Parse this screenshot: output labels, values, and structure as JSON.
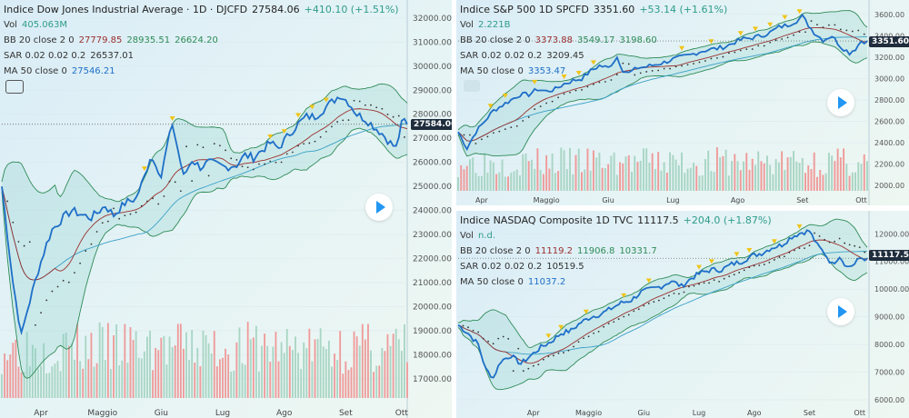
{
  "colors": {
    "price": "#1e6fc8",
    "ma": "#9b2f2f",
    "bb": "#2e8b57",
    "sar": "#333333",
    "up": "#a8d5c4",
    "down": "#ef9a9a",
    "marker_up": "#f0c419",
    "marker_down": "#e54848",
    "text_up": "#2e9c8a",
    "text_down": "#c0392b"
  },
  "chart_data": [
    {
      "type": "line",
      "id": "dj",
      "title": "Indice Dow Jones Industrial Average · 1D · DJCFD",
      "last": "27584.06",
      "change": "+410.10 (+1.51%)",
      "indicators": [
        {
          "label": "Vol",
          "values": [
            "405.063M"
          ]
        },
        {
          "label": "BB 20 close 2 0",
          "values": [
            "27779.85",
            "28935.51",
            "26624.20"
          ]
        },
        {
          "label": "SAR 0.02 0.02 0.2",
          "values": [
            "26537.01"
          ]
        },
        {
          "label": "MA 50 close 0",
          "values": [
            "27546.21"
          ]
        }
      ],
      "ylim": [
        16200,
        32600
      ],
      "yticks": [
        17000,
        18000,
        19000,
        20000,
        21000,
        22000,
        23000,
        24000,
        25000,
        26000,
        27000,
        28000,
        29000,
        30000,
        31000,
        32000
      ],
      "price_label": "27584.06",
      "x_ticks": [
        {
          "label": "Apr",
          "i": 14
        },
        {
          "label": "Maggio",
          "i": 36
        },
        {
          "label": "Giu",
          "i": 57
        },
        {
          "label": "Lug",
          "i": 79
        },
        {
          "label": "Ago",
          "i": 101
        },
        {
          "label": "Set",
          "i": 123
        },
        {
          "label": "Ott",
          "i": 143
        }
      ],
      "n": 146,
      "anchors": [
        [
          0,
          25000
        ],
        [
          4,
          21000
        ],
        [
          7,
          18800
        ],
        [
          9,
          19800
        ],
        [
          13,
          21500
        ],
        [
          16,
          22600
        ],
        [
          18,
          23200
        ],
        [
          22,
          23700
        ],
        [
          25,
          24000
        ],
        [
          29,
          23800
        ],
        [
          32,
          23700
        ],
        [
          37,
          24200
        ],
        [
          40,
          23800
        ],
        [
          44,
          24300
        ],
        [
          48,
          24500
        ],
        [
          51,
          25400
        ],
        [
          53,
          26200
        ],
        [
          55,
          26000
        ],
        [
          57,
          25400
        ],
        [
          59,
          26600
        ],
        [
          61,
          27600
        ],
        [
          63,
          26500
        ],
        [
          65,
          25400
        ],
        [
          68,
          26100
        ],
        [
          71,
          25800
        ],
        [
          74,
          26000
        ],
        [
          77,
          25900
        ],
        [
          80,
          25800
        ],
        [
          84,
          25900
        ],
        [
          87,
          26300
        ],
        [
          90,
          26200
        ],
        [
          93,
          26500
        ],
        [
          96,
          26800
        ],
        [
          99,
          26600
        ],
        [
          103,
          27200
        ],
        [
          106,
          27600
        ],
        [
          109,
          27900
        ],
        [
          112,
          27900
        ],
        [
          115,
          28200
        ],
        [
          118,
          28500
        ],
        [
          121,
          28800
        ],
        [
          124,
          28500
        ],
        [
          127,
          28000
        ],
        [
          130,
          27800
        ],
        [
          133,
          27500
        ],
        [
          136,
          27200
        ],
        [
          139,
          26800
        ],
        [
          141,
          26600
        ],
        [
          143,
          27584
        ]
      ]
    },
    {
      "type": "line",
      "id": "sp",
      "title": "Indice S&P 500   1D   SPCFD",
      "last": "3351.60",
      "change": "+53.14 (+1.61%)",
      "indicators": [
        {
          "label": "Vol",
          "values": [
            "2.221B"
          ]
        },
        {
          "label": "BB 20 close 2 0",
          "values": [
            "3373.88",
            "3549.17",
            "3198.60"
          ]
        },
        {
          "label": "SAR 0.02 0.02 0.2",
          "values": [
            "3209.45"
          ]
        },
        {
          "label": "MA 50 close 0",
          "values": [
            "3353.47"
          ]
        }
      ],
      "ylim": [
        1950,
        3700
      ],
      "yticks": [
        2000,
        2200,
        2400,
        2600,
        2800,
        3000,
        3200,
        3400,
        3600
      ],
      "price_label": "3351.60",
      "x_ticks": [
        {
          "label": "Apr",
          "i": 8
        },
        {
          "label": "Maggio",
          "i": 30
        },
        {
          "label": "Giu",
          "i": 51
        },
        {
          "label": "Lug",
          "i": 73
        },
        {
          "label": "Ago",
          "i": 95
        },
        {
          "label": "Set",
          "i": 117
        },
        {
          "label": "Ott",
          "i": 137
        }
      ],
      "n": 140,
      "anchors": [
        [
          0,
          2500
        ],
        [
          3,
          2350
        ],
        [
          6,
          2500
        ],
        [
          9,
          2600
        ],
        [
          12,
          2700
        ],
        [
          15,
          2750
        ],
        [
          18,
          2800
        ],
        [
          21,
          2850
        ],
        [
          24,
          2850
        ],
        [
          27,
          2900
        ],
        [
          30,
          2880
        ],
        [
          33,
          2900
        ],
        [
          36,
          2950
        ],
        [
          39,
          2980
        ],
        [
          42,
          3000
        ],
        [
          45,
          3070
        ],
        [
          48,
          3120
        ],
        [
          51,
          3100
        ],
        [
          54,
          3200
        ],
        [
          56,
          3080
        ],
        [
          58,
          3050
        ],
        [
          61,
          3100
        ],
        [
          64,
          3110
        ],
        [
          67,
          3130
        ],
        [
          70,
          3150
        ],
        [
          73,
          3180
        ],
        [
          76,
          3200
        ],
        [
          79,
          3220
        ],
        [
          82,
          3250
        ],
        [
          85,
          3270
        ],
        [
          88,
          3280
        ],
        [
          91,
          3300
        ],
        [
          94,
          3340
        ],
        [
          97,
          3370
        ],
        [
          100,
          3380
        ],
        [
          103,
          3400
        ],
        [
          106,
          3430
        ],
        [
          109,
          3480
        ],
        [
          112,
          3500
        ],
        [
          115,
          3540
        ],
        [
          117,
          3580
        ],
        [
          119,
          3500
        ],
        [
          121,
          3430
        ],
        [
          124,
          3360
        ],
        [
          127,
          3400
        ],
        [
          130,
          3300
        ],
        [
          133,
          3240
        ],
        [
          135,
          3280
        ],
        [
          137,
          3351
        ]
      ]
    },
    {
      "type": "line",
      "id": "nq",
      "title": "Indice NASDAQ Composite   1D   TVC",
      "last": "11117.5",
      "change": "+204.0 (+1.87%)",
      "indicators": [
        {
          "label": "Vol",
          "values": [
            "n.d."
          ]
        },
        {
          "label": "BB 20 close 2 0",
          "values": [
            "11119.2",
            "11906.8",
            "10331.7"
          ]
        },
        {
          "label": "SAR 0.02 0.02 0.2",
          "values": [
            "10519.5"
          ]
        },
        {
          "label": "MA 50 close 0",
          "values": [
            "11037.2"
          ]
        }
      ],
      "ylim": [
        5800,
        12700
      ],
      "yticks": [
        6000,
        7000,
        8000,
        9000,
        10000,
        11000,
        12000
      ],
      "price_label": "11117.5",
      "x_ticks": [
        {
          "label": "Apr",
          "i": 30
        },
        {
          "label": "Maggio",
          "i": 52
        },
        {
          "label": "Giu",
          "i": 74
        },
        {
          "label": "Lug",
          "i": 96
        },
        {
          "label": "Ago",
          "i": 118
        },
        {
          "label": "Set",
          "i": 140
        },
        {
          "label": "Ott",
          "i": 160
        }
      ],
      "n": 164,
      "anchors": [
        [
          0,
          8700
        ],
        [
          4,
          8400
        ],
        [
          8,
          8000
        ],
        [
          11,
          7100
        ],
        [
          14,
          6800
        ],
        [
          17,
          7400
        ],
        [
          21,
          7600
        ],
        [
          25,
          7300
        ],
        [
          29,
          7600
        ],
        [
          33,
          7900
        ],
        [
          37,
          8100
        ],
        [
          41,
          8400
        ],
        [
          45,
          8500
        ],
        [
          49,
          8800
        ],
        [
          53,
          9000
        ],
        [
          57,
          9100
        ],
        [
          61,
          9300
        ],
        [
          65,
          9500
        ],
        [
          69,
          9600
        ],
        [
          73,
          9900
        ],
        [
          77,
          10000
        ],
        [
          81,
          10100
        ],
        [
          85,
          10300
        ],
        [
          89,
          10100
        ],
        [
          93,
          10400
        ],
        [
          97,
          10600
        ],
        [
          101,
          10700
        ],
        [
          105,
          10700
        ],
        [
          109,
          10900
        ],
        [
          113,
          11000
        ],
        [
          117,
          11200
        ],
        [
          121,
          11300
        ],
        [
          125,
          11500
        ],
        [
          129,
          11600
        ],
        [
          133,
          11900
        ],
        [
          137,
          12050
        ],
        [
          140,
          12100
        ],
        [
          143,
          11600
        ],
        [
          146,
          11300
        ],
        [
          149,
          10900
        ],
        [
          152,
          11200
        ],
        [
          155,
          10800
        ],
        [
          158,
          10900
        ],
        [
          160,
          11117
        ]
      ]
    }
  ]
}
